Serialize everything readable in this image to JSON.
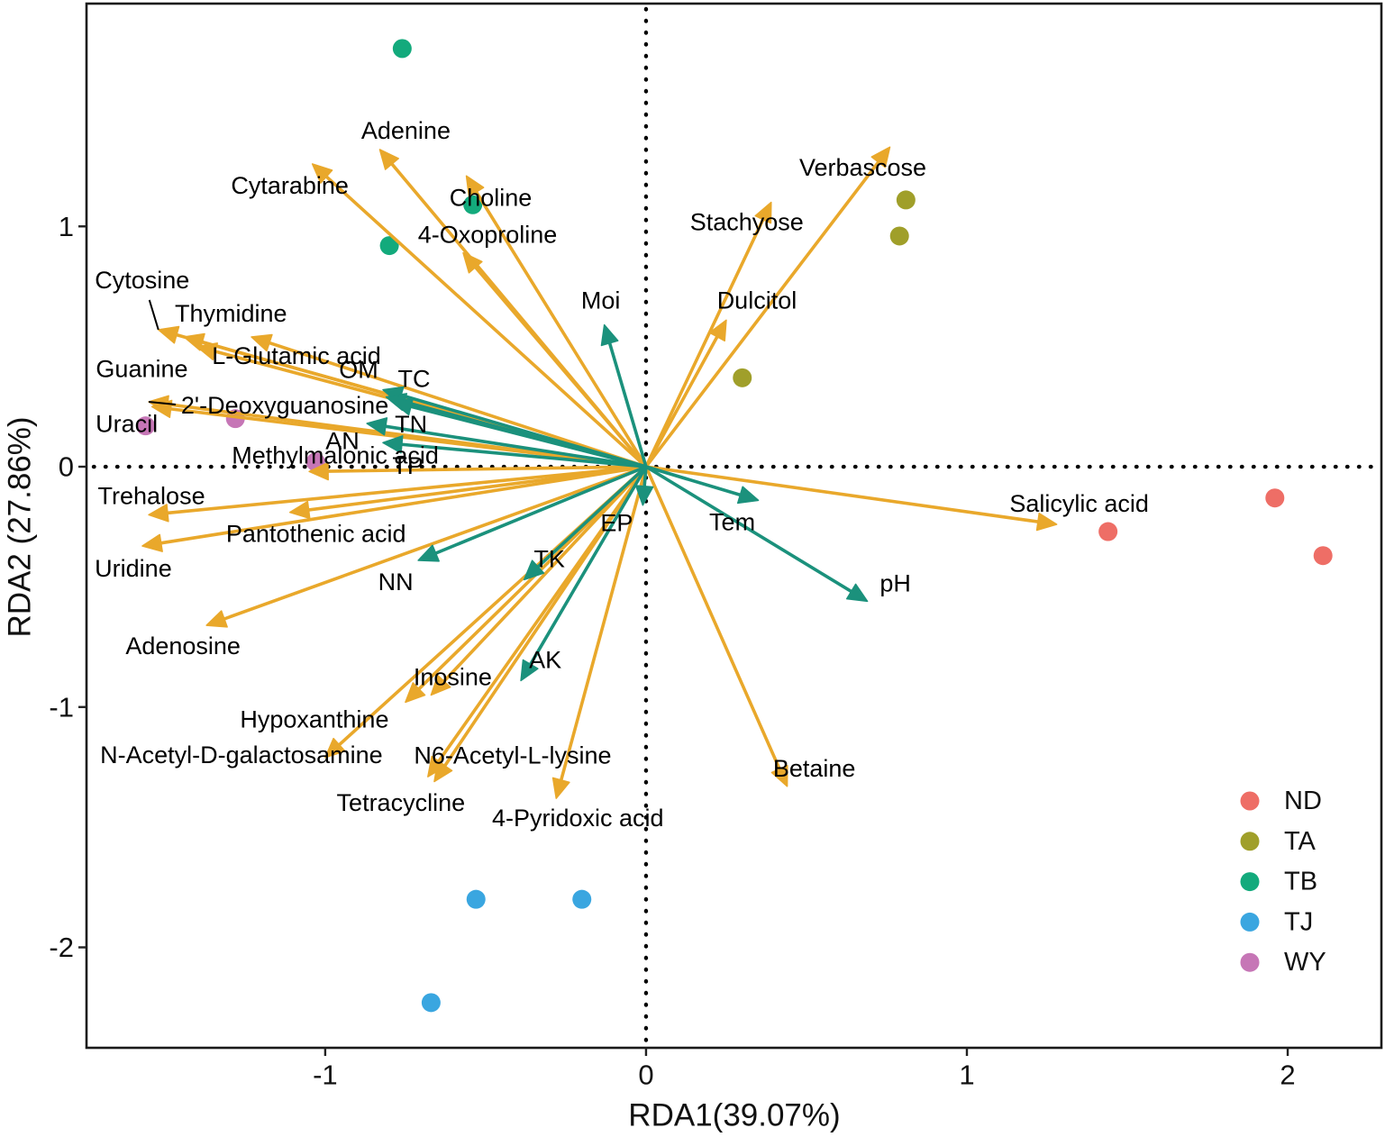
{
  "chart_data": {
    "type": "scatter",
    "xlabel": "RDA1(39.07%)",
    "ylabel": "RDA2 (27.86%)",
    "xlim": [
      -1.744,
      2.292
    ],
    "ylim": [
      -2.418,
      1.927
    ],
    "xticks": [
      -1,
      0,
      1,
      2
    ],
    "xtick_labels": [
      "-1",
      "0",
      "1",
      "2"
    ],
    "yticks": [
      -2,
      -1,
      0,
      1
    ],
    "ytick_labels": [
      "-2",
      "-1",
      "0",
      "1"
    ],
    "grid": false,
    "reference_lines": {
      "x": 0,
      "y": 0
    },
    "legend_position": "bottom-right",
    "series": [
      {
        "name": "ND",
        "color": "#EE6E66",
        "points": [
          {
            "x": 1.96,
            "y": -0.13
          },
          {
            "x": 1.44,
            "y": -0.27
          },
          {
            "x": 2.11,
            "y": -0.37
          }
        ]
      },
      {
        "name": "TA",
        "color": "#A09F2A",
        "points": [
          {
            "x": 0.81,
            "y": 1.11
          },
          {
            "x": 0.79,
            "y": 0.96
          },
          {
            "x": 0.3,
            "y": 0.37
          }
        ]
      },
      {
        "name": "TB",
        "color": "#13AA7C",
        "points": [
          {
            "x": -0.76,
            "y": 1.74
          },
          {
            "x": -0.54,
            "y": 1.09
          },
          {
            "x": -0.8,
            "y": 0.92
          }
        ]
      },
      {
        "name": "TJ",
        "color": "#3AA6E0",
        "points": [
          {
            "x": -0.53,
            "y": -1.8
          },
          {
            "x": -0.2,
            "y": -1.8
          },
          {
            "x": -0.67,
            "y": -2.23
          }
        ]
      },
      {
        "name": "WY",
        "color": "#C676B6",
        "points": [
          {
            "x": -1.56,
            "y": 0.17
          },
          {
            "x": -1.28,
            "y": 0.2
          },
          {
            "x": -1.03,
            "y": 0.02
          }
        ]
      }
    ],
    "metabolite_arrows": {
      "color": "#E9A82B",
      "vectors": [
        {
          "label": "Adenine",
          "x": -0.83,
          "y": 1.32
        },
        {
          "label": "Cytarabine",
          "x": -1.04,
          "y": 1.26
        },
        {
          "label": "Choline",
          "x": -0.56,
          "y": 1.21
        },
        {
          "label": "4-Oxoproline",
          "x": -0.57,
          "y": 0.89
        },
        {
          "label": "Cytosine",
          "x": -1.52,
          "y": 0.57
        },
        {
          "label": "Thymidine",
          "x": -1.44,
          "y": 0.54
        },
        {
          "label": "Guanine",
          "x": -1.4,
          "y": 0.5
        },
        {
          "label": "L-Glutamic acid",
          "x": -1.23,
          "y": 0.54
        },
        {
          "label": "2'-Deoxyguanosine",
          "x": -1.55,
          "y": 0.27
        },
        {
          "label": "Uracil",
          "x": -1.54,
          "y": 0.25
        },
        {
          "label": "Methylmalonic acid",
          "x": -1.05,
          "y": -0.02
        },
        {
          "label": "Trehalose",
          "x": -1.55,
          "y": -0.2
        },
        {
          "label": "Pantothenic acid",
          "x": -1.11,
          "y": -0.19
        },
        {
          "label": "Uridine",
          "x": -1.57,
          "y": -0.33
        },
        {
          "label": "Adenosine",
          "x": -1.37,
          "y": -0.66
        },
        {
          "label": "Inosine",
          "x": -0.67,
          "y": -0.95
        },
        {
          "label": "Hypoxanthine",
          "x": -0.75,
          "y": -0.98
        },
        {
          "label": "N-Acetyl-D-galactosamine",
          "x": -1.0,
          "y": -1.21
        },
        {
          "label": "N6-Acetyl-L-lysine",
          "x": -0.66,
          "y": -1.31
        },
        {
          "label": "Tetracycline",
          "x": -0.68,
          "y": -1.29
        },
        {
          "label": "4-Pyridoxic acid",
          "x": -0.28,
          "y": -1.38
        },
        {
          "label": "Betaine",
          "x": 0.44,
          "y": -1.33
        },
        {
          "label": "Salicylic acid",
          "x": 1.28,
          "y": -0.24
        },
        {
          "label": "Verbascose",
          "x": 0.76,
          "y": 1.33
        },
        {
          "label": "Stachyose",
          "x": 0.39,
          "y": 1.1
        },
        {
          "label": "Dulcitol",
          "x": 0.25,
          "y": 0.61
        }
      ]
    },
    "environment_arrows": {
      "color": "#1B917C",
      "vectors": [
        {
          "label": "Moi",
          "x": -0.13,
          "y": 0.59
        },
        {
          "label": "OM",
          "x": -0.82,
          "y": 0.32
        },
        {
          "label": "TC",
          "x": -0.81,
          "y": 0.29
        },
        {
          "label": "TN",
          "x": -0.87,
          "y": 0.18
        },
        {
          "label": "AN",
          "x": -0.82,
          "y": 0.1
        },
        {
          "label": "TP",
          "x": -0.79,
          "y": 0.27
        },
        {
          "label": "NN",
          "x": -0.71,
          "y": -0.39
        },
        {
          "label": "EP",
          "x": -0.01,
          "y": -0.16
        },
        {
          "label": "TK",
          "x": -0.38,
          "y": -0.47
        },
        {
          "label": "AK",
          "x": -0.39,
          "y": -0.89
        },
        {
          "label": "Tem",
          "x": 0.35,
          "y": -0.14
        },
        {
          "label": "pH",
          "x": 0.69,
          "y": -0.56
        }
      ]
    }
  }
}
